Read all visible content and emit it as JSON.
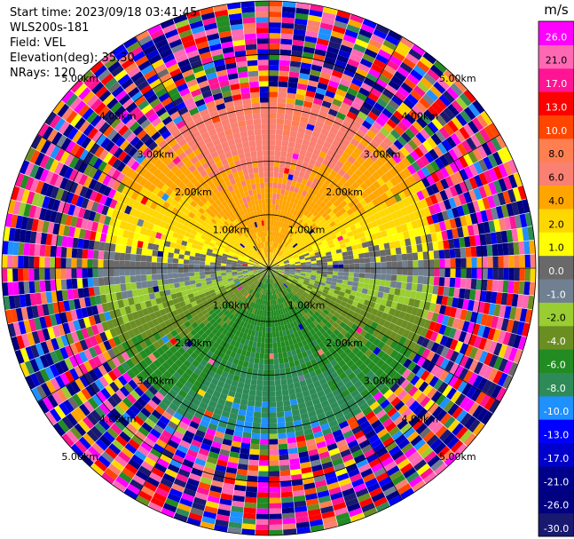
{
  "header": {
    "start_time": "Start time: 2023/09/18 03:41:45",
    "instrument": "WLS200s-181",
    "field": "Field: VEL",
    "elevation": "Elevation(deg): 35.30",
    "nrays": "NRays: 120"
  },
  "chart_data": {
    "type": "heatmap",
    "projection": "polar-ppi",
    "field": "VEL",
    "units": "m/s",
    "n_rays": 120,
    "elevation_deg": 35.3,
    "range_rings_km": [
      1,
      2,
      3,
      4,
      5
    ],
    "range_ring_labels": [
      "1.00km",
      "2.00km",
      "3.00km",
      "4.00km",
      "5.00km"
    ],
    "max_range_km": 5.0,
    "spokes_deg": [
      0,
      30,
      60,
      90,
      120,
      150,
      180,
      210,
      240,
      270,
      300,
      330
    ],
    "colorbar": {
      "title": "m/s",
      "vmin": -30.0,
      "vmax": 30.0,
      "levels": [
        -30.0,
        -26.0,
        -21.0,
        -17.0,
        -13.0,
        -10.0,
        -8.0,
        -6.0,
        -4.0,
        -2.0,
        -1.0,
        0.0,
        1.0,
        2.0,
        4.0,
        6.0,
        8.0,
        10.0,
        13.0,
        17.0,
        21.0,
        26.0,
        30.0
      ],
      "tick_labels": [
        "-30.0",
        "-26.0",
        "-21.0",
        "-17.0",
        "-13.0",
        "-10.0",
        "-8.0",
        "-6.0",
        "-4.0",
        "-2.0",
        "-1.0",
        "0.0",
        "1.0",
        "2.0",
        "4.0",
        "6.0",
        "8.0",
        "10.0",
        "13.0",
        "17.0",
        "21.0",
        "26.0"
      ],
      "colors": [
        "#191970",
        "#000080",
        "#00008b",
        "#0000cd",
        "#0000ff",
        "#1e90ff",
        "#2e8b57",
        "#228b22",
        "#6b8e23",
        "#9acd32",
        "#708090",
        "#696969",
        "#ffff00",
        "#ffd700",
        "#ffa500",
        "#fa8072",
        "#ff7f50",
        "#ff4500",
        "#ff0000",
        "#ff1493",
        "#ff69b4",
        "#ff00ff"
      ]
    },
    "pattern": {
      "description_zones": "approaching (green) in south, receding (yellow/orange) in north, near-zero (gray) on east-west axis; noise beyond ~3.2 km",
      "speed_at_3km_ms": 7.0
    }
  }
}
